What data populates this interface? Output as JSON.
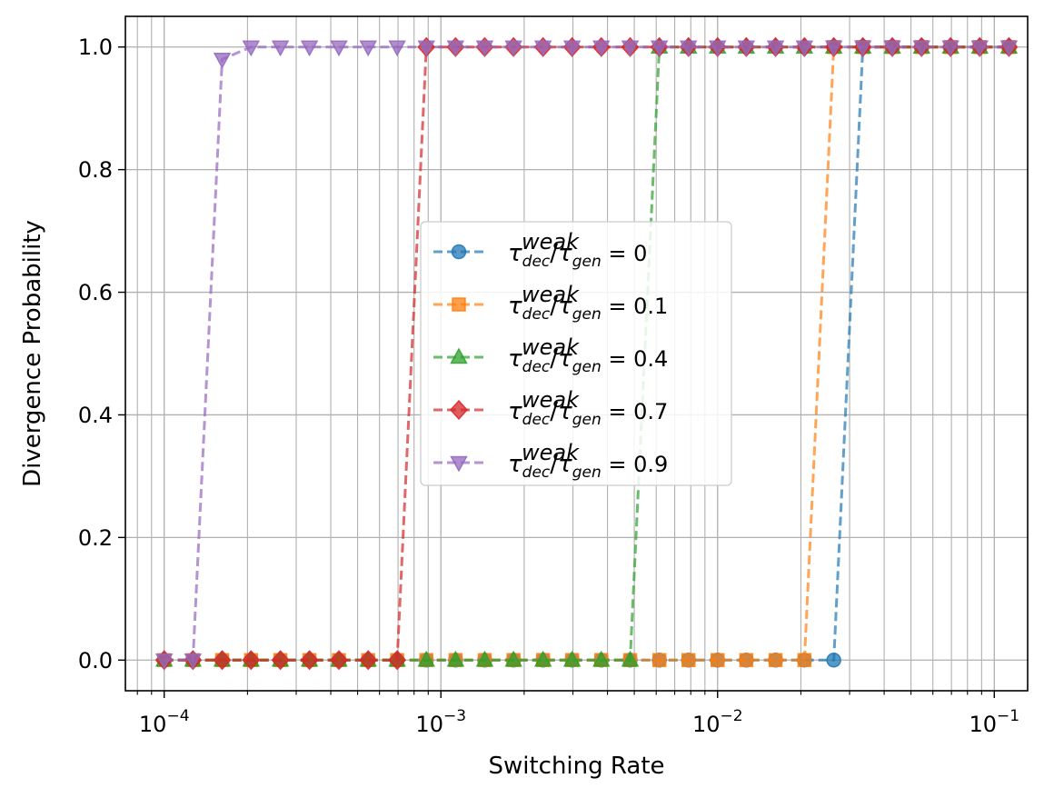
{
  "chart_data": {
    "type": "line",
    "title": "",
    "xlabel": "Switching Rate",
    "ylabel": "Divergence Probability",
    "xscale": "log",
    "xlim": [
      7.24e-05,
      0.132
    ],
    "ylim": [
      -0.05,
      1.05
    ],
    "grid": true,
    "x_ticks": [
      0.0001,
      0.001,
      0.01,
      0.1
    ],
    "x_tick_labels": [
      {
        "base": "10",
        "exp": "−4"
      },
      {
        "base": "10",
        "exp": "−3"
      },
      {
        "base": "10",
        "exp": "−2"
      },
      {
        "base": "10",
        "exp": "−1"
      }
    ],
    "y_ticks": [
      0.0,
      0.2,
      0.4,
      0.6,
      0.8,
      1.0
    ],
    "y_tick_labels": [
      "0.0",
      "0.2",
      "0.4",
      "0.6",
      "0.8",
      "1.0"
    ],
    "x": [
      0.0001,
      0.000127,
      0.000162,
      0.000206,
      0.000263,
      0.000335,
      0.000428,
      0.000546,
      0.000695,
      0.000886,
      0.00113,
      0.00144,
      0.00183,
      0.00234,
      0.00298,
      0.0038,
      0.00483,
      0.00616,
      0.00785,
      0.01,
      0.0127,
      0.0162,
      0.0206,
      0.0263,
      0.0335,
      0.0428,
      0.0546,
      0.0695,
      0.0886,
      0.113
    ],
    "legend": {
      "placement": "center",
      "prefix": "τ",
      "sub1": "dec",
      "sup": "weak",
      "sub2": "gen"
    },
    "series": [
      {
        "name": "τdec^weak/τgen = 0",
        "ratio_label": "0",
        "color": "#1f77b4",
        "marker": "circle",
        "values": [
          0,
          0,
          0,
          0,
          0,
          0,
          0,
          0,
          0,
          0,
          0,
          0,
          0,
          0,
          0,
          0,
          0,
          0,
          0,
          0,
          0,
          0,
          0,
          0,
          1,
          1,
          1,
          1,
          1,
          1
        ]
      },
      {
        "name": "τdec^weak/τgen = 0.1",
        "ratio_label": "0.1",
        "color": "#ff7f0e",
        "marker": "square",
        "values": [
          0,
          0,
          0,
          0,
          0,
          0,
          0,
          0,
          0,
          0,
          0,
          0,
          0,
          0,
          0,
          0,
          0,
          0,
          0,
          0,
          0,
          0,
          0,
          1,
          1,
          1,
          1,
          1,
          1,
          1
        ]
      },
      {
        "name": "τdec^weak/τgen = 0.4",
        "ratio_label": "0.4",
        "color": "#2ca02c",
        "marker": "triangle-up",
        "values": [
          0,
          0,
          0,
          0,
          0,
          0,
          0,
          0,
          0,
          0,
          0,
          0,
          0,
          0,
          0,
          0,
          0,
          1,
          1,
          1,
          1,
          1,
          1,
          1,
          1,
          1,
          1,
          1,
          1,
          1
        ]
      },
      {
        "name": "τdec^weak/τgen = 0.7",
        "ratio_label": "0.7",
        "color": "#d62728",
        "marker": "diamond",
        "values": [
          0,
          0,
          0,
          0,
          0,
          0,
          0,
          0,
          0,
          1,
          1,
          1,
          1,
          1,
          1,
          1,
          1,
          1,
          1,
          1,
          1,
          1,
          1,
          1,
          1,
          1,
          1,
          1,
          1,
          1
        ]
      },
      {
        "name": "τdec^weak/τgen = 0.9",
        "ratio_label": "0.9",
        "color": "#9467bd",
        "marker": "triangle-down",
        "values": [
          0,
          0,
          0.98,
          1,
          1,
          1,
          1,
          1,
          1,
          1,
          1,
          1,
          1,
          1,
          1,
          1,
          1,
          1,
          1,
          1,
          1,
          1,
          1,
          1,
          1,
          1,
          1,
          1,
          1,
          1
        ]
      }
    ]
  }
}
